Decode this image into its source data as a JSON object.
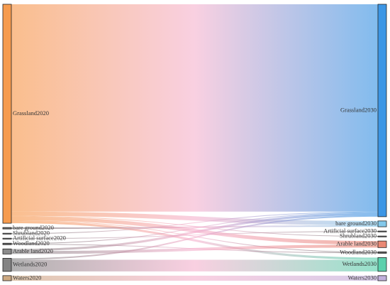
{
  "chart_data": {
    "type": "sankey",
    "nodes": [
      {
        "name": "Grassland2020",
        "side": "left",
        "color": "#f5892f"
      },
      {
        "name": "bare ground2020",
        "side": "left",
        "color": "#555555"
      },
      {
        "name": "Shrubland2020",
        "side": "left",
        "color": "#666666"
      },
      {
        "name": "Artificial surface2020",
        "side": "left",
        "color": "#666666"
      },
      {
        "name": "Woodland2020",
        "side": "left",
        "color": "#444444"
      },
      {
        "name": "Arable land2020",
        "side": "left",
        "color": "#777777"
      },
      {
        "name": "Wetlands2020",
        "side": "left",
        "color": "#6f6f6f"
      },
      {
        "name": "Waters2020",
        "side": "left",
        "color": "#c49a6c"
      },
      {
        "name": "Grassland2030",
        "side": "right",
        "color": "#1a84e0"
      },
      {
        "name": "bare ground2030",
        "side": "right",
        "color": "#6fc0e8"
      },
      {
        "name": "Artificial surface2030",
        "side": "right",
        "color": "#555555"
      },
      {
        "name": "Shrubland2030",
        "side": "right",
        "color": "#666666"
      },
      {
        "name": "Arable land2030",
        "side": "right",
        "color": "#e5735c"
      },
      {
        "name": "Woodland2030",
        "side": "right",
        "color": "#444444"
      },
      {
        "name": "Wetlands2030",
        "side": "right",
        "color": "#3ec99f"
      },
      {
        "name": "Waters2030",
        "side": "right",
        "color": "#b6a2d6"
      }
    ],
    "links": [
      {
        "source": 0,
        "target": 8,
        "value": 285
      },
      {
        "source": 0,
        "target": 9,
        "value": 6
      },
      {
        "source": 0,
        "target": 11,
        "value": 1
      },
      {
        "source": 0,
        "target": 12,
        "value": 5
      },
      {
        "source": 0,
        "target": 13,
        "value": 1
      },
      {
        "source": 0,
        "target": 14,
        "value": 3
      },
      {
        "source": 1,
        "target": 9,
        "value": 2
      },
      {
        "source": 2,
        "target": 8,
        "value": 1
      },
      {
        "source": 3,
        "target": 10,
        "value": 1
      },
      {
        "source": 4,
        "target": 8,
        "value": 1
      },
      {
        "source": 4,
        "target": 13,
        "value": 1
      },
      {
        "source": 5,
        "target": 8,
        "value": 3
      },
      {
        "source": 5,
        "target": 12,
        "value": 4
      },
      {
        "source": 6,
        "target": 8,
        "value": 2
      },
      {
        "source": 6,
        "target": 14,
        "value": 16
      },
      {
        "source": 7,
        "target": 15,
        "value": 7
      }
    ]
  }
}
